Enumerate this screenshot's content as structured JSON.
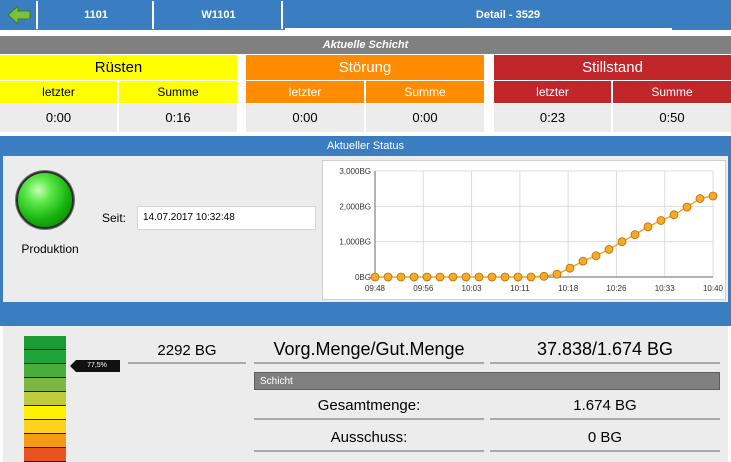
{
  "nav": {
    "items": [
      "1101",
      "W1101",
      "Detail - 3529"
    ]
  },
  "shift": {
    "title": "Aktuelle Schicht",
    "categories": [
      {
        "name": "Rüsten",
        "last_label": "letzter",
        "sum_label": "Summe",
        "last": "0:00",
        "sum": "0:16",
        "color": "#ffff00",
        "text_color": "#000000"
      },
      {
        "name": "Störung",
        "last_label": "letzter",
        "sum_label": "Summe",
        "last": "0:00",
        "sum": "0:00",
        "color": "#ff8c00",
        "text_color": "#ffffff"
      },
      {
        "name": "Stillstand",
        "last_label": "letzter",
        "sum_label": "Summe",
        "last": "0:23",
        "sum": "0:50",
        "color": "#c0262a",
        "text_color": "#ffffff"
      }
    ]
  },
  "status": {
    "title": "Aktueller Status",
    "state": "Produktion",
    "since_label": "Seit:",
    "since_value": "14.07.2017 10:32:48"
  },
  "chart_data": {
    "type": "line",
    "x": [
      "09:48",
      "09:50",
      "09:52",
      "09:54",
      "09:56",
      "09:58",
      "10:00",
      "10:02",
      "10:04",
      "10:06",
      "10:08",
      "10:10",
      "10:12",
      "10:14",
      "10:16",
      "10:18",
      "10:20",
      "10:22",
      "10:24",
      "10:26",
      "10:28",
      "10:30",
      "10:32",
      "10:34",
      "10:36",
      "10:38",
      "10:40"
    ],
    "values": [
      0,
      0,
      0,
      0,
      0,
      0,
      0,
      0,
      0,
      0,
      0,
      0,
      0,
      20,
      80,
      250,
      450,
      600,
      780,
      1000,
      1200,
      1420,
      1600,
      1760,
      1980,
      2220,
      2292
    ],
    "xticks": [
      "09:48",
      "09:56",
      "10:03",
      "10:11",
      "10:18",
      "10:26",
      "10:33",
      "10:40"
    ],
    "yticks": [
      "0BG",
      "1,000BG",
      "2,000BG",
      "3,000BG"
    ],
    "ylim": [
      0,
      3000
    ],
    "grid": true,
    "line_color": "#f5a623"
  },
  "quantity": {
    "gauge_label": "77,5%",
    "gauge_fraction": 0.775,
    "gauge_colors": [
      "#1a9c33",
      "#1fa43a",
      "#49ad3b",
      "#7cb743",
      "#c0cb3a",
      "#fff200",
      "#ffd21e",
      "#f39c12",
      "#e8541f",
      "#d7191f"
    ],
    "current": "2292 BG",
    "label": "Vorg.Menge/Gut.Menge",
    "ratio": "37.838/1.674 BG",
    "shift_label": "Schicht",
    "total_label": "Gesamtmenge:",
    "total_value": "1.674 BG",
    "scrap_label": "Ausschuss:",
    "scrap_value": "0 BG"
  }
}
